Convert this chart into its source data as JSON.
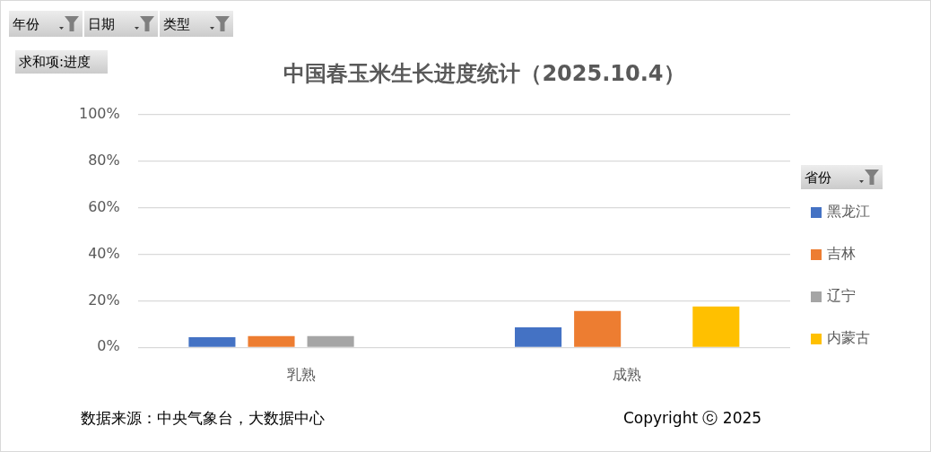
{
  "chart_data": {
    "type": "bar",
    "title": "中国春玉米生长进度统计（2025.10.4）",
    "ylabel": "求和项:进度",
    "legend_title": "省份",
    "categories": [
      "乳熟",
      "成熟"
    ],
    "series": [
      {
        "name": "黑龙江",
        "color": "#4472c4",
        "values": [
          4.4,
          8.6
        ]
      },
      {
        "name": "吉林",
        "color": "#ed7d31",
        "values": [
          4.8,
          15.6
        ]
      },
      {
        "name": "辽宁",
        "color": "#a5a5a5",
        "values": [
          4.8,
          null
        ]
      },
      {
        "name": "内蒙古",
        "color": "#ffc000",
        "values": [
          null,
          17.5
        ]
      }
    ],
    "ylim": [
      0,
      100
    ],
    "yticks": [
      {
        "value": 0,
        "label": "0%"
      },
      {
        "value": 20,
        "label": "20%"
      },
      {
        "value": 40,
        "label": "40%"
      },
      {
        "value": 60,
        "label": "60%"
      },
      {
        "value": 80,
        "label": "80%"
      },
      {
        "value": 100,
        "label": "100%"
      }
    ],
    "grid": "y",
    "legend": "right",
    "annotations": [
      "年份",
      "日期",
      "类型",
      "数据来源：中央气象台，大数据中心",
      "Copyright ⓒ 2025"
    ]
  }
}
